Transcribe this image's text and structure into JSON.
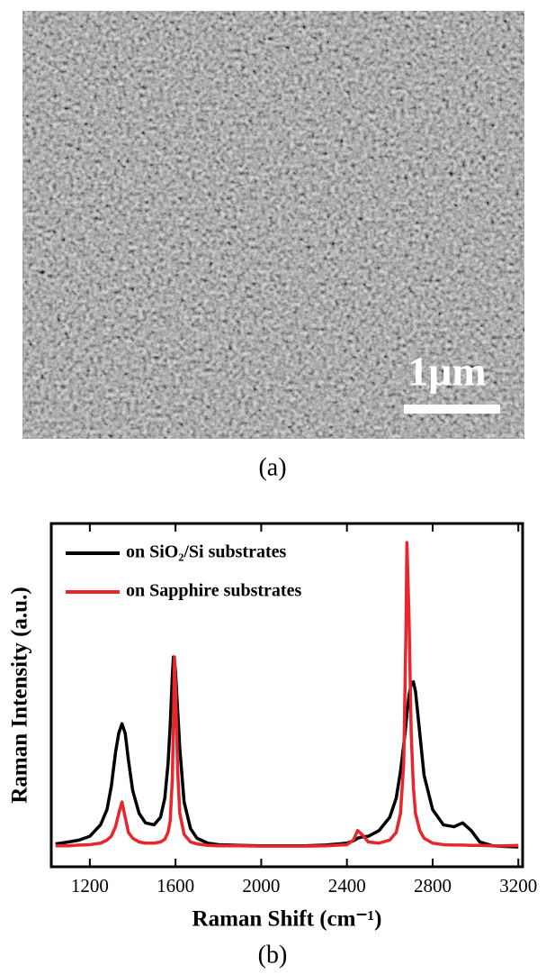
{
  "image": {
    "scale_bar": "1μm",
    "label": "(a)"
  },
  "chart_data": {
    "type": "line",
    "label": "(b)",
    "x_label": "Raman Shift (cm⁻¹)",
    "y_label": "Raman Intensity (a.u.)",
    "x": [
      1040,
      1100,
      1150,
      1200,
      1250,
      1280,
      1300,
      1320,
      1335,
      1350,
      1365,
      1380,
      1400,
      1430,
      1460,
      1500,
      1530,
      1550,
      1565,
      1575,
      1585,
      1590,
      1595,
      1600,
      1610,
      1620,
      1640,
      1670,
      1700,
      1750,
      1800,
      1900,
      2000,
      2100,
      2200,
      2300,
      2400,
      2430,
      2450,
      2470,
      2500,
      2550,
      2600,
      2630,
      2650,
      2665,
      2675,
      2680,
      2690,
      2700,
      2710,
      2720,
      2740,
      2760,
      2800,
      2850,
      2900,
      2940,
      2980,
      3020,
      3080,
      3140,
      3200
    ],
    "series": [
      {
        "name": "on SiO₂/Si substrates",
        "color": "#000000",
        "values": [
          0.1,
          0.15,
          0.2,
          0.3,
          0.6,
          1.0,
          1.6,
          2.5,
          3.0,
          3.25,
          3.0,
          2.3,
          1.5,
          0.9,
          0.65,
          0.6,
          0.8,
          1.3,
          2.2,
          3.2,
          4.5,
          5.0,
          4.9,
          4.6,
          3.6,
          2.6,
          1.2,
          0.5,
          0.25,
          0.12,
          0.08,
          0.06,
          0.05,
          0.05,
          0.05,
          0.07,
          0.12,
          0.18,
          0.25,
          0.28,
          0.3,
          0.45,
          0.8,
          1.3,
          2.0,
          2.7,
          3.2,
          3.5,
          4.0,
          4.3,
          4.35,
          4.1,
          3.0,
          1.9,
          1.0,
          0.6,
          0.55,
          0.65,
          0.45,
          0.15,
          0.05,
          0.03,
          0.02
        ]
      },
      {
        "name": "on Sapphire substrates",
        "color": "#e8262b",
        "values": [
          0.05,
          0.05,
          0.07,
          0.08,
          0.12,
          0.2,
          0.3,
          0.55,
          0.9,
          1.2,
          0.8,
          0.4,
          0.25,
          0.15,
          0.12,
          0.12,
          0.15,
          0.22,
          0.4,
          0.7,
          1.8,
          3.2,
          5.0,
          4.2,
          2.0,
          0.9,
          0.35,
          0.15,
          0.1,
          0.06,
          0.05,
          0.05,
          0.04,
          0.04,
          0.04,
          0.05,
          0.08,
          0.2,
          0.45,
          0.35,
          0.15,
          0.12,
          0.2,
          0.4,
          0.9,
          2.2,
          5.5,
          8.0,
          6.0,
          3.0,
          1.6,
          0.9,
          0.45,
          0.25,
          0.12,
          0.08,
          0.07,
          0.07,
          0.06,
          0.06,
          0.05,
          0.05,
          0.06
        ]
      }
    ],
    "xlim": [
      1020,
      3220
    ],
    "xticks": [
      1200,
      1600,
      2000,
      2400,
      2800,
      3200
    ],
    "ylim": [
      -0.5,
      8.5
    ],
    "legend": "upper-left"
  }
}
